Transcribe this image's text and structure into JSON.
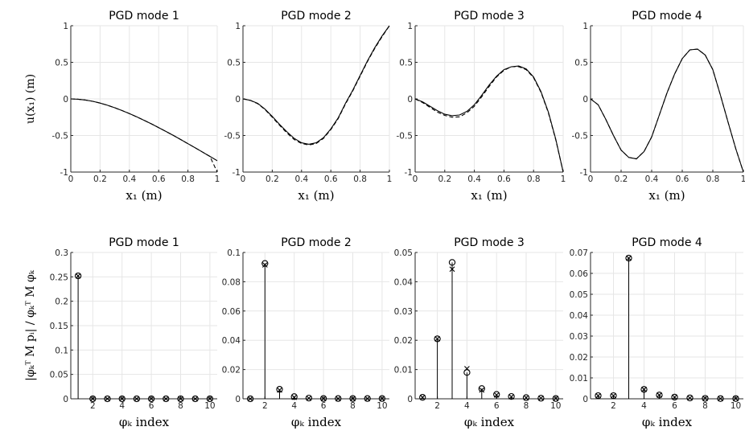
{
  "figure": {
    "top_ylabel": "u(x₁) (m)",
    "bottom_ylabel": "|φₖᵀ M pᵢ| / φₖᵀ M φₖ"
  },
  "chart_data": [
    {
      "type": "line",
      "panel": "top-1",
      "title": "PGD mode 1",
      "xlabel": "x₁ (m)",
      "ylabel": "u(x₁) (m)",
      "xlim": [
        0,
        1
      ],
      "ylim": [
        -1,
        1
      ],
      "xticks": [
        0,
        0.2,
        0.4,
        0.6,
        0.8,
        1
      ],
      "xtick_labels": [
        "0",
        "0.2",
        "0.4",
        "0.6",
        "0.8",
        "1"
      ],
      "yticks": [
        -1,
        -0.5,
        0,
        0.5,
        1
      ],
      "ytick_labels": [
        "-1",
        "-0.5",
        "0",
        "0.5",
        "1"
      ],
      "grid": true,
      "x": [
        0,
        0.05,
        0.1,
        0.15,
        0.2,
        0.25,
        0.3,
        0.35,
        0.4,
        0.45,
        0.5,
        0.55,
        0.6,
        0.65,
        0.7,
        0.75,
        0.8,
        0.85,
        0.9,
        0.95,
        1
      ],
      "series": [
        {
          "style": "solid",
          "values": [
            0,
            -0.004,
            -0.015,
            -0.033,
            -0.057,
            -0.087,
            -0.121,
            -0.159,
            -0.201,
            -0.245,
            -0.292,
            -0.341,
            -0.392,
            -0.445,
            -0.499,
            -0.555,
            -0.612,
            -0.669,
            -0.727,
            -0.786,
            -0.845
          ]
        },
        {
          "style": "dashed",
          "values": [
            0,
            -0.004,
            -0.015,
            -0.033,
            -0.057,
            -0.087,
            -0.121,
            -0.159,
            -0.201,
            -0.245,
            -0.292,
            -0.341,
            -0.392,
            -0.445,
            -0.499,
            -0.555,
            -0.612,
            -0.669,
            -0.727,
            -0.786,
            -1.0
          ]
        }
      ]
    },
    {
      "type": "line",
      "panel": "top-2",
      "title": "PGD mode 2",
      "xlabel": "x₁ (m)",
      "ylabel": "",
      "xlim": [
        0,
        1
      ],
      "ylim": [
        -1,
        1
      ],
      "xticks": [
        0,
        0.2,
        0.4,
        0.6,
        0.8,
        1
      ],
      "xtick_labels": [
        "0",
        "0.2",
        "0.4",
        "0.6",
        "0.8",
        "1"
      ],
      "yticks": [
        -1,
        -0.5,
        0,
        0.5,
        1
      ],
      "ytick_labels": [
        "-1",
        "-0.5",
        "0",
        "0.5",
        "1"
      ],
      "grid": true,
      "x": [
        0,
        0.05,
        0.1,
        0.15,
        0.2,
        0.25,
        0.3,
        0.35,
        0.4,
        0.45,
        0.5,
        0.55,
        0.6,
        0.65,
        0.7,
        0.75,
        0.8,
        0.85,
        0.9,
        0.95,
        1
      ],
      "series": [
        {
          "style": "solid",
          "values": [
            0,
            -0.02,
            -0.06,
            -0.14,
            -0.24,
            -0.35,
            -0.45,
            -0.54,
            -0.6,
            -0.62,
            -0.6,
            -0.53,
            -0.41,
            -0.26,
            -0.06,
            0.12,
            0.32,
            0.52,
            0.7,
            0.86,
            1.0
          ]
        },
        {
          "style": "dashed",
          "values": [
            0,
            -0.02,
            -0.065,
            -0.145,
            -0.25,
            -0.36,
            -0.465,
            -0.555,
            -0.61,
            -0.63,
            -0.61,
            -0.54,
            -0.42,
            -0.27,
            -0.07,
            0.11,
            0.31,
            0.51,
            0.69,
            0.85,
            1.0
          ]
        }
      ]
    },
    {
      "type": "line",
      "panel": "top-3",
      "title": "PGD mode 3",
      "xlabel": "x₁ (m)",
      "ylabel": "",
      "xlim": [
        0,
        1
      ],
      "ylim": [
        -1,
        1
      ],
      "xticks": [
        0,
        0.2,
        0.4,
        0.6,
        0.8,
        1
      ],
      "xtick_labels": [
        "0",
        "0.2",
        "0.4",
        "0.6",
        "0.8",
        "1"
      ],
      "yticks": [
        -1,
        -0.5,
        0,
        0.5,
        1
      ],
      "ytick_labels": [
        "-1",
        "-0.5",
        "0",
        "0.5",
        "1"
      ],
      "grid": true,
      "x": [
        0,
        0.05,
        0.1,
        0.15,
        0.2,
        0.25,
        0.3,
        0.35,
        0.4,
        0.45,
        0.5,
        0.55,
        0.6,
        0.65,
        0.7,
        0.75,
        0.8,
        0.85,
        0.9,
        0.95,
        1
      ],
      "series": [
        {
          "style": "solid",
          "values": [
            0,
            -0.04,
            -0.1,
            -0.16,
            -0.21,
            -0.23,
            -0.22,
            -0.17,
            -0.08,
            0.05,
            0.19,
            0.31,
            0.4,
            0.44,
            0.45,
            0.41,
            0.3,
            0.1,
            -0.18,
            -0.55,
            -1.0
          ]
        },
        {
          "style": "dashed",
          "values": [
            0,
            -0.05,
            -0.115,
            -0.18,
            -0.225,
            -0.25,
            -0.245,
            -0.19,
            -0.1,
            0.03,
            0.17,
            0.3,
            0.39,
            0.44,
            0.44,
            0.4,
            0.29,
            0.09,
            -0.19,
            -0.56,
            -1.0
          ]
        }
      ]
    },
    {
      "type": "line",
      "panel": "top-4",
      "title": "PGD mode 4",
      "xlabel": "x₁ (m)",
      "ylabel": "",
      "xlim": [
        0,
        1
      ],
      "ylim": [
        -1,
        1
      ],
      "xticks": [
        0,
        0.2,
        0.4,
        0.6,
        0.8,
        1
      ],
      "xtick_labels": [
        "0",
        "0.2",
        "0.4",
        "0.6",
        "0.8",
        "1"
      ],
      "yticks": [
        -1,
        -0.5,
        0,
        0.5,
        1
      ],
      "ytick_labels": [
        "-1",
        "-0.5",
        "0",
        "0.5",
        "1"
      ],
      "grid": true,
      "x": [
        0,
        0.05,
        0.1,
        0.15,
        0.2,
        0.25,
        0.3,
        0.35,
        0.4,
        0.45,
        0.5,
        0.55,
        0.6,
        0.65,
        0.7,
        0.75,
        0.8,
        0.85,
        0.9,
        0.95,
        1
      ],
      "series": [
        {
          "style": "solid",
          "values": [
            0,
            -0.08,
            -0.28,
            -0.5,
            -0.7,
            -0.8,
            -0.82,
            -0.72,
            -0.52,
            -0.22,
            0.08,
            0.34,
            0.55,
            0.67,
            0.68,
            0.6,
            0.4,
            0.05,
            -0.32,
            -0.68,
            -1.0
          ]
        },
        {
          "style": "dashed",
          "values": [
            0,
            -0.08,
            -0.28,
            -0.5,
            -0.7,
            -0.8,
            -0.82,
            -0.72,
            -0.52,
            -0.22,
            0.08,
            0.34,
            0.55,
            0.67,
            0.68,
            0.6,
            0.4,
            0.05,
            -0.32,
            -0.68,
            -1.0
          ]
        }
      ]
    },
    {
      "type": "scatter",
      "subtype": "stem",
      "panel": "bottom-1",
      "title": "PGD mode 1",
      "xlabel": "φₖ index",
      "ylabel": "",
      "xlim": [
        0.5,
        10.5
      ],
      "ylim": [
        0,
        0.3
      ],
      "xticks": [
        2,
        4,
        6,
        8,
        10
      ],
      "xtick_labels": [
        "2",
        "4",
        "6",
        "8",
        "10"
      ],
      "yticks": [
        0,
        0.05,
        0.1,
        0.15,
        0.2,
        0.25,
        0.3
      ],
      "ytick_labels": [
        "0",
        "0.05",
        "0.1",
        "0.15",
        "0.2",
        "0.25",
        "0.3"
      ],
      "grid": true,
      "x": [
        1,
        2,
        3,
        4,
        5,
        6,
        7,
        8,
        9,
        10
      ],
      "series": [
        {
          "marker": "o",
          "values": [
            0.252,
            0,
            0,
            0,
            0,
            0,
            0,
            0,
            0,
            0
          ]
        },
        {
          "marker": "x",
          "values": [
            0.252,
            0,
            0,
            0,
            0,
            0,
            0,
            0,
            0,
            0
          ]
        }
      ]
    },
    {
      "type": "scatter",
      "subtype": "stem",
      "panel": "bottom-2",
      "title": "PGD mode 2",
      "xlabel": "φₖ index",
      "ylabel": "",
      "xlim": [
        0.5,
        10.5
      ],
      "ylim": [
        0,
        0.1
      ],
      "xticks": [
        2,
        4,
        6,
        8,
        10
      ],
      "xtick_labels": [
        "2",
        "4",
        "6",
        "8",
        "10"
      ],
      "yticks": [
        0,
        0.02,
        0.04,
        0.06,
        0.08,
        0.1
      ],
      "ytick_labels": [
        "0",
        "0.02",
        "0.04",
        "0.06",
        "0.08",
        "0.1"
      ],
      "grid": true,
      "x": [
        1,
        2,
        3,
        4,
        5,
        6,
        7,
        8,
        9,
        10
      ],
      "series": [
        {
          "marker": "o",
          "values": [
            0,
            0.0925,
            0.0065,
            0.0015,
            0.0005,
            0.0002,
            0.0002,
            0.0002,
            0.0002,
            0.0002
          ]
        },
        {
          "marker": "x",
          "values": [
            0,
            0.0915,
            0.006,
            0.001,
            0.0004,
            0.0001,
            0.0001,
            0.0001,
            0.0001,
            0.0001
          ]
        }
      ]
    },
    {
      "type": "scatter",
      "subtype": "stem",
      "panel": "bottom-3",
      "title": "PGD mode 3",
      "xlabel": "φₖ index",
      "ylabel": "",
      "xlim": [
        0.5,
        10.5
      ],
      "ylim": [
        0,
        0.05
      ],
      "xticks": [
        2,
        4,
        6,
        8,
        10
      ],
      "xtick_labels": [
        "2",
        "4",
        "6",
        "8",
        "10"
      ],
      "yticks": [
        0,
        0.01,
        0.02,
        0.03,
        0.04,
        0.05
      ],
      "ytick_labels": [
        "0",
        "0.01",
        "0.02",
        "0.03",
        "0.04",
        "0.05"
      ],
      "grid": true,
      "x": [
        1,
        2,
        3,
        4,
        5,
        6,
        7,
        8,
        9,
        10
      ],
      "series": [
        {
          "marker": "o",
          "values": [
            0.0005,
            0.0205,
            0.0466,
            0.009,
            0.0035,
            0.0015,
            0.0008,
            0.0004,
            0.0002,
            0.0001
          ]
        },
        {
          "marker": "x",
          "values": [
            0.0005,
            0.0205,
            0.0443,
            0.0103,
            0.003,
            0.0013,
            0.0007,
            0.0003,
            0.0002,
            0.0001
          ]
        }
      ]
    },
    {
      "type": "scatter",
      "subtype": "stem",
      "panel": "bottom-4",
      "title": "PGD mode 4",
      "xlabel": "φₖ index",
      "ylabel": "",
      "xlim": [
        0.5,
        10.5
      ],
      "ylim": [
        0,
        0.07
      ],
      "xticks": [
        2,
        4,
        6,
        8,
        10
      ],
      "xtick_labels": [
        "2",
        "4",
        "6",
        "8",
        "10"
      ],
      "yticks": [
        0,
        0.01,
        0.02,
        0.03,
        0.04,
        0.05,
        0.06,
        0.07
      ],
      "ytick_labels": [
        "0",
        "0.01",
        "0.02",
        "0.03",
        "0.04",
        "0.05",
        "0.06",
        "0.07"
      ],
      "grid": true,
      "x": [
        1,
        2,
        3,
        4,
        5,
        6,
        7,
        8,
        9,
        10
      ],
      "series": [
        {
          "marker": "o",
          "values": [
            0.0015,
            0.0015,
            0.0673,
            0.0045,
            0.0018,
            0.0008,
            0.0004,
            0.0002,
            0.0001,
            0.0001
          ]
        },
        {
          "marker": "x",
          "values": [
            0.0015,
            0.0015,
            0.0673,
            0.0045,
            0.0018,
            0.0008,
            0.0004,
            0.0002,
            0.0001,
            0.0001
          ]
        }
      ]
    }
  ]
}
